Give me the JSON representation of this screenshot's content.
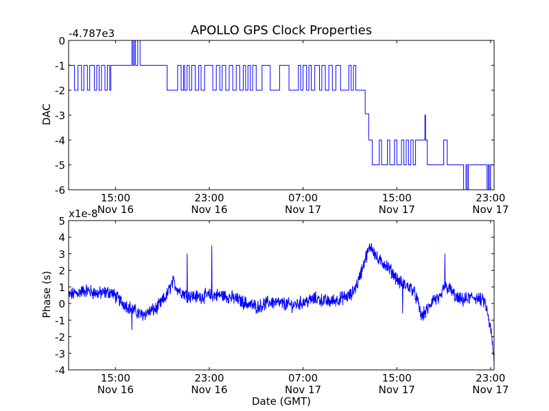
{
  "chart_data": [
    {
      "type": "line",
      "title": "APOLLO GPS Clock Properties",
      "offset_label": "-4.787e3",
      "ylabel": "DAC",
      "xlabel": "",
      "ylim": [
        -6,
        0
      ],
      "yticks": [
        0,
        -1,
        -2,
        -3,
        -4,
        -5,
        -6
      ],
      "ytick_labels": [
        "0",
        "-1",
        "-2",
        "-3",
        "-4",
        "-5",
        "-6"
      ],
      "xlim": [
        11,
        47.3
      ],
      "xticks": [
        15,
        23,
        31,
        39,
        47
      ],
      "xtick_labels": [
        {
          "time": "15:00",
          "date": "Nov 16"
        },
        {
          "time": "23:00",
          "date": "Nov 16"
        },
        {
          "time": "07:00",
          "date": "Nov 17"
        },
        {
          "time": "15:00",
          "date": "Nov 17"
        },
        {
          "time": "23:00",
          "date": "Nov 17"
        }
      ],
      "series_color": "#0000ff",
      "series": [
        {
          "name": "DAC",
          "values": [
            [
              11.0,
              -1
            ],
            [
              11.5,
              -1
            ],
            [
              11.5,
              -2
            ],
            [
              11.8,
              -2
            ],
            [
              11.8,
              -1
            ],
            [
              12.1,
              -1
            ],
            [
              12.1,
              -2
            ],
            [
              12.3,
              -2
            ],
            [
              12.3,
              -1
            ],
            [
              12.6,
              -1
            ],
            [
              12.6,
              -2
            ],
            [
              12.8,
              -2
            ],
            [
              12.8,
              -1
            ],
            [
              13.2,
              -1
            ],
            [
              13.2,
              -2
            ],
            [
              13.4,
              -2
            ],
            [
              13.4,
              -1
            ],
            [
              13.6,
              -1
            ],
            [
              13.6,
              -2
            ],
            [
              13.8,
              -2
            ],
            [
              13.8,
              -1
            ],
            [
              14.1,
              -1
            ],
            [
              14.1,
              -2
            ],
            [
              14.3,
              -2
            ],
            [
              14.3,
              -1
            ],
            [
              14.5,
              -1
            ],
            [
              14.5,
              -2
            ],
            [
              14.6,
              -2
            ],
            [
              14.6,
              -1
            ],
            [
              15.9,
              -1
            ],
            [
              15.9,
              -1
            ],
            [
              16.4,
              -1
            ],
            [
              16.4,
              0
            ],
            [
              16.5,
              0
            ],
            [
              16.5,
              -1
            ],
            [
              16.6,
              -1
            ],
            [
              16.6,
              0
            ],
            [
              16.7,
              0
            ],
            [
              16.7,
              -1
            ],
            [
              16.9,
              -1
            ],
            [
              16.9,
              0
            ],
            [
              17.1,
              0
            ],
            [
              17.1,
              -1
            ],
            [
              19.4,
              -1
            ],
            [
              19.4,
              -2
            ],
            [
              20.3,
              -2
            ],
            [
              20.3,
              -1
            ],
            [
              20.6,
              -1
            ],
            [
              20.6,
              -2
            ],
            [
              20.8,
              -2
            ],
            [
              20.8,
              -1
            ],
            [
              20.9,
              -1
            ],
            [
              20.9,
              -2
            ],
            [
              21.1,
              -2
            ],
            [
              21.1,
              -1
            ],
            [
              21.3,
              -1
            ],
            [
              21.3,
              -2
            ],
            [
              21.5,
              -2
            ],
            [
              21.5,
              -1
            ],
            [
              21.8,
              -1
            ],
            [
              21.8,
              -2
            ],
            [
              22.1,
              -2
            ],
            [
              22.1,
              -1
            ],
            [
              22.3,
              -1
            ],
            [
              22.3,
              -2
            ],
            [
              22.6,
              -2
            ],
            [
              22.6,
              -1
            ],
            [
              23.3,
              -1
            ],
            [
              23.3,
              -2
            ],
            [
              23.6,
              -2
            ],
            [
              23.6,
              -1
            ],
            [
              23.9,
              -1
            ],
            [
              23.9,
              -2
            ],
            [
              24.1,
              -2
            ],
            [
              24.1,
              -1
            ],
            [
              24.4,
              -1
            ],
            [
              24.4,
              -2
            ],
            [
              24.7,
              -2
            ],
            [
              24.7,
              -1
            ],
            [
              25.0,
              -1
            ],
            [
              25.0,
              -2
            ],
            [
              25.3,
              -2
            ],
            [
              25.3,
              -1
            ],
            [
              25.6,
              -1
            ],
            [
              25.6,
              -2
            ],
            [
              25.9,
              -2
            ],
            [
              25.9,
              -1
            ],
            [
              26.1,
              -1
            ],
            [
              26.1,
              -2
            ],
            [
              26.3,
              -2
            ],
            [
              26.3,
              -1
            ],
            [
              26.5,
              -1
            ],
            [
              26.5,
              -2
            ],
            [
              26.7,
              -2
            ],
            [
              26.7,
              -1
            ],
            [
              27.0,
              -1
            ],
            [
              27.0,
              -2
            ],
            [
              27.5,
              -2
            ],
            [
              27.5,
              -1
            ],
            [
              28.2,
              -1
            ],
            [
              28.2,
              -2
            ],
            [
              29.0,
              -2
            ],
            [
              29.0,
              -1
            ],
            [
              29.8,
              -1
            ],
            [
              29.8,
              -2
            ],
            [
              30.6,
              -2
            ],
            [
              30.6,
              -1
            ],
            [
              30.8,
              -1
            ],
            [
              30.8,
              -2
            ],
            [
              31.0,
              -2
            ],
            [
              31.0,
              -1
            ],
            [
              31.3,
              -1
            ],
            [
              31.3,
              -2
            ],
            [
              31.5,
              -2
            ],
            [
              31.5,
              -1
            ],
            [
              31.7,
              -1
            ],
            [
              31.7,
              -2
            ],
            [
              32.0,
              -2
            ],
            [
              32.0,
              -1
            ],
            [
              32.4,
              -1
            ],
            [
              32.4,
              -2
            ],
            [
              32.6,
              -2
            ],
            [
              32.6,
              -1
            ],
            [
              32.9,
              -1
            ],
            [
              32.9,
              -2
            ],
            [
              33.2,
              -2
            ],
            [
              33.2,
              -1
            ],
            [
              33.5,
              -1
            ],
            [
              33.5,
              -2
            ],
            [
              33.8,
              -2
            ],
            [
              33.8,
              -1
            ],
            [
              34.2,
              -1
            ],
            [
              34.2,
              -2
            ],
            [
              34.9,
              -2
            ],
            [
              34.9,
              -1
            ],
            [
              35.1,
              -1
            ],
            [
              35.1,
              -2
            ],
            [
              35.3,
              -2
            ],
            [
              35.3,
              -1
            ],
            [
              35.5,
              -1
            ],
            [
              35.5,
              -2
            ],
            [
              36.3,
              -2
            ],
            [
              36.3,
              -2.95
            ],
            [
              36.6,
              -2.95
            ],
            [
              36.6,
              -4
            ],
            [
              36.9,
              -4
            ],
            [
              36.9,
              -5
            ],
            [
              37.5,
              -5
            ],
            [
              37.5,
              -4
            ],
            [
              37.7,
              -4
            ],
            [
              37.7,
              -5
            ],
            [
              38.2,
              -5
            ],
            [
              38.2,
              -4
            ],
            [
              38.4,
              -4
            ],
            [
              38.4,
              -5
            ],
            [
              38.8,
              -5
            ],
            [
              38.8,
              -4
            ],
            [
              39.0,
              -4
            ],
            [
              39.0,
              -5
            ],
            [
              39.4,
              -5
            ],
            [
              39.4,
              -4
            ],
            [
              39.6,
              -4
            ],
            [
              39.6,
              -5
            ],
            [
              39.8,
              -5
            ],
            [
              39.8,
              -4
            ],
            [
              40.0,
              -4
            ],
            [
              40.0,
              -5
            ],
            [
              40.2,
              -5
            ],
            [
              40.2,
              -4
            ],
            [
              40.4,
              -4
            ],
            [
              40.4,
              -5
            ],
            [
              40.6,
              -5
            ],
            [
              40.6,
              -4
            ],
            [
              41.4,
              -4
            ],
            [
              41.4,
              -3
            ],
            [
              41.45,
              -3
            ],
            [
              41.45,
              -4
            ],
            [
              41.6,
              -4
            ],
            [
              41.6,
              -5
            ],
            [
              43.0,
              -5
            ],
            [
              43.0,
              -4
            ],
            [
              43.3,
              -4
            ],
            [
              43.3,
              -5
            ],
            [
              44.7,
              -5
            ],
            [
              44.7,
              -6
            ],
            [
              44.9,
              -6
            ],
            [
              44.9,
              -5
            ],
            [
              45.0,
              -5
            ],
            [
              45.0,
              -6
            ],
            [
              45.1,
              -6
            ],
            [
              45.1,
              -5
            ],
            [
              46.7,
              -5
            ],
            [
              46.7,
              -6
            ],
            [
              46.8,
              -6
            ],
            [
              46.8,
              -5
            ],
            [
              46.9,
              -5
            ],
            [
              46.9,
              -6
            ],
            [
              47.0,
              -6
            ],
            [
              47.0,
              -5
            ],
            [
              47.3,
              -5
            ],
            [
              47.3,
              -4
            ]
          ]
        }
      ]
    },
    {
      "type": "line",
      "title": "",
      "offset_label": "x1e-8",
      "ylabel": "Phase (s)",
      "xlabel": "Date (GMT)",
      "ylim": [
        -4,
        5
      ],
      "yticks": [
        5,
        4,
        3,
        2,
        1,
        0,
        -1,
        -2,
        -3,
        -4
      ],
      "ytick_labels": [
        "5",
        "4",
        "3",
        "2",
        "1",
        "0",
        "-1",
        "-2",
        "-3",
        "-4"
      ],
      "xlim": [
        11,
        47.3
      ],
      "xticks": [
        15,
        23,
        31,
        39,
        47
      ],
      "xtick_labels": [
        {
          "time": "15:00",
          "date": "Nov 16"
        },
        {
          "time": "23:00",
          "date": "Nov 16"
        },
        {
          "time": "07:00",
          "date": "Nov 17"
        },
        {
          "time": "15:00",
          "date": "Nov 17"
        },
        {
          "time": "23:00",
          "date": "Nov 17"
        }
      ],
      "series_color": "#0000ff",
      "series": [
        {
          "name": "Phase",
          "noise_amplitude": 0.35,
          "baseline": [
            [
              11.0,
              0.5
            ],
            [
              12.5,
              0.8
            ],
            [
              13.5,
              0.6
            ],
            [
              14.6,
              0.7
            ],
            [
              15.5,
              0.1
            ],
            [
              17.2,
              -0.7
            ],
            [
              18.5,
              -0.3
            ],
            [
              19.3,
              0.4
            ],
            [
              19.9,
              1.3
            ],
            [
              20.4,
              0.8
            ],
            [
              21.1,
              0.5
            ],
            [
              22.1,
              0.4
            ],
            [
              23.1,
              0.5
            ],
            [
              24.1,
              0.5
            ],
            [
              25.2,
              0.3
            ],
            [
              26.2,
              0.0
            ],
            [
              27.1,
              -0.2
            ],
            [
              28.2,
              0.1
            ],
            [
              29.1,
              0.0
            ],
            [
              30.2,
              -0.1
            ],
            [
              31.1,
              0.1
            ],
            [
              32.1,
              0.3
            ],
            [
              33.2,
              0.1
            ],
            [
              34.2,
              0.3
            ],
            [
              35.1,
              0.5
            ],
            [
              35.7,
              1.3
            ],
            [
              36.3,
              2.7
            ],
            [
              36.8,
              3.5
            ],
            [
              37.4,
              2.6
            ],
            [
              38.0,
              2.4
            ],
            [
              38.7,
              1.8
            ],
            [
              39.2,
              1.3
            ],
            [
              40.3,
              0.9
            ],
            [
              40.7,
              0.3
            ],
            [
              41.1,
              -0.8
            ],
            [
              41.7,
              -0.3
            ],
            [
              42.1,
              0.3
            ],
            [
              42.7,
              0.2
            ],
            [
              43.0,
              1.0
            ],
            [
              43.5,
              0.9
            ],
            [
              44.1,
              0.3
            ],
            [
              44.6,
              0.2
            ],
            [
              45.6,
              0.4
            ],
            [
              46.5,
              0.1
            ],
            [
              46.8,
              -0.8
            ],
            [
              47.1,
              -2.0
            ],
            [
              47.3,
              -3.5
            ]
          ],
          "spikes": [
            [
              21.1,
              3.0
            ],
            [
              23.2,
              3.5
            ],
            [
              16.4,
              -1.6
            ],
            [
              35.9,
              2.0
            ],
            [
              43.1,
              3.0
            ],
            [
              39.5,
              -0.6
            ],
            [
              47.3,
              -3.7
            ]
          ]
        }
      ]
    }
  ]
}
